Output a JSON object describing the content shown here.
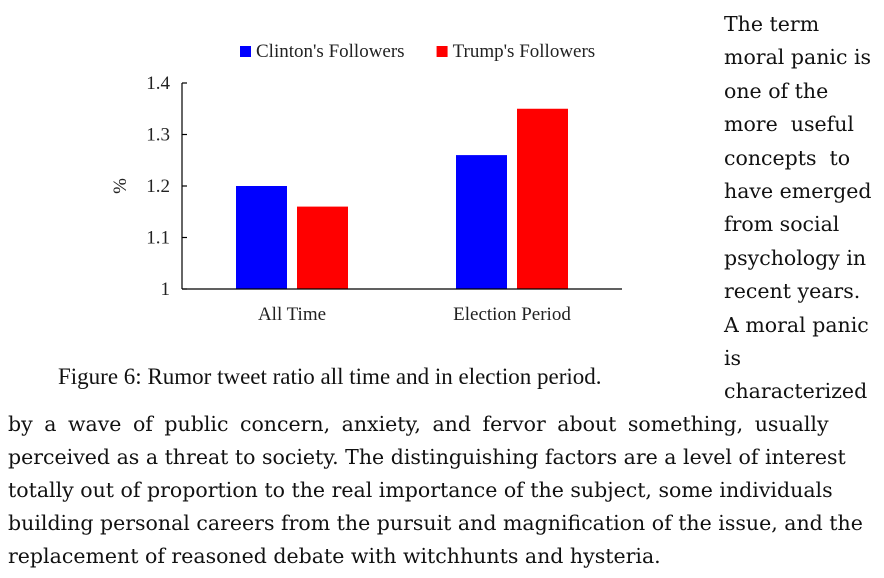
{
  "chart_data": {
    "type": "bar",
    "categories": [
      "All Time",
      "Election Period"
    ],
    "series": [
      {
        "name": "Clinton's Followers",
        "color": "#0000ff",
        "values": [
          1.2,
          1.26
        ]
      },
      {
        "name": "Trump's Followers",
        "color": "#ff0000",
        "values": [
          1.16,
          1.35
        ]
      }
    ],
    "ylabel": "%",
    "ylim": [
      1,
      1.4
    ],
    "yticks": [
      "1",
      "1.1",
      "1.2",
      "1.3",
      "1.4"
    ],
    "grid": false,
    "legend": "top"
  },
  "figure": {
    "caption": "Figure 6: Rumor tweet ratio all time and in election period."
  },
  "side_text": {
    "lines": [
      "The term",
      "moral panic is",
      "one of the",
      "more  useful",
      "concepts  to",
      "have emerged",
      "from social",
      "psychology in",
      "recent years.",
      "A moral panic",
      "is",
      "characterized"
    ]
  },
  "body_text": {
    "lines": [
      "by a wave of public concern, anxiety, and fervor about something, usually",
      "perceived as a threat to society. The distinguishing factors are a level of interest",
      "totally out of proportion to the real importance of the subject, some individuals",
      "building personal careers from the pursuit and magnification of the issue, and the",
      "replacement of reasoned debate with witchhunts and hysteria."
    ]
  }
}
